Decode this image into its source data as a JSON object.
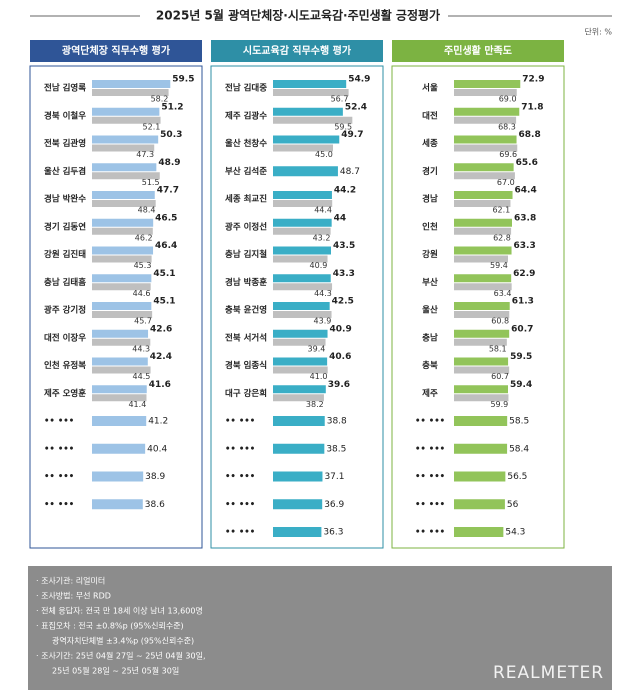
{
  "title": "2025년 5월 광역단체장·시도교육감·주민생활 긍정평가",
  "unit": "단위: %",
  "chart_data": [
    {
      "type": "bar",
      "title": "광역단체장 직무수행 평가",
      "header_color": "#2f5597",
      "categories": [
        "전남 김영록",
        "경북 이철우",
        "전북 김관영",
        "울산 김두겸",
        "경남 박완수",
        "경기 김동연",
        "강원 김진태",
        "충남 김태흠",
        "광주 강기정",
        "대전 이장우",
        "인천 유정복",
        "제주 오영훈",
        "•• •••",
        "•• •••",
        "•• •••",
        "•• •••"
      ],
      "xlim": [
        0,
        76
      ],
      "series": [
        {
          "color": "#9dc3e6",
          "values": [
            59.5,
            51.2,
            50.3,
            48.9,
            47.7,
            46.5,
            46.4,
            45.1,
            45.1,
            42.6,
            42.4,
            41.6,
            41.2,
            40.4,
            38.9,
            38.6
          ]
        },
        {
          "color": "#bfbfbf",
          "values": [
            58.2,
            52.1,
            47.3,
            51.5,
            48.4,
            46.2,
            45.3,
            44.6,
            45.7,
            44.3,
            44.5,
            41.4,
            null,
            null,
            null,
            null
          ]
        }
      ]
    },
    {
      "type": "bar",
      "title": "시도교육감 직무수행 평가",
      "header_color": "#2e8fa6",
      "categories": [
        "전남 김대중",
        "제주 김광수",
        "울산 천창수",
        "부산 김석준",
        "세종 최교진",
        "광주 이정선",
        "충남 김지철",
        "경남 박종훈",
        "충북 윤건영",
        "전북 서거석",
        "경북 임종식",
        "대구 강은희",
        "•• •••",
        "•• •••",
        "•• •••",
        "•• •••",
        "•• •••"
      ],
      "xlim": [
        0,
        75
      ],
      "series": [
        {
          "color": "#3aaec6",
          "values": [
            54.9,
            52.4,
            49.7,
            48.7,
            44.2,
            44.0,
            43.5,
            43.3,
            42.5,
            40.9,
            40.6,
            39.6,
            38.8,
            38.5,
            37.1,
            36.9,
            36.3
          ]
        },
        {
          "color": "#bfbfbf",
          "values": [
            56.7,
            59.5,
            45.0,
            null,
            44.4,
            43.2,
            40.9,
            44.3,
            43.9,
            39.4,
            41.0,
            38.2,
            null,
            null,
            null,
            null,
            null
          ],
          "value_labels": [
            "56.7",
            "59.5",
            "45.0",
            null,
            "44.4",
            "43.2",
            "40.9",
            "44.3",
            "43.9",
            "39.4",
            "41.0",
            "38.2",
            null,
            null,
            null,
            null,
            null
          ]
        }
      ]
    },
    {
      "type": "bar",
      "title": "주민생활 만족도",
      "header_color": "#7cb342",
      "categories": [
        "서울",
        "대전",
        "세종",
        "경기",
        "경남",
        "인천",
        "강원",
        "부산",
        "울산",
        "충남",
        "충북",
        "제주",
        "•• •••",
        "•• •••",
        "•• •••",
        "•• •••",
        "•• •••"
      ],
      "xlim": [
        0,
        110
      ],
      "series": [
        {
          "color": "#92c45a",
          "values": [
            72.9,
            71.8,
            68.8,
            65.6,
            64.4,
            63.8,
            63.3,
            62.9,
            61.3,
            60.7,
            59.5,
            59.4,
            58.5,
            58.4,
            56.5,
            56.0,
            54.3
          ]
        },
        {
          "color": "#bfbfbf",
          "values": [
            69.0,
            68.3,
            69.6,
            67.0,
            62.1,
            62.8,
            59.4,
            63.4,
            60.8,
            58.1,
            60.7,
            59.9,
            null,
            null,
            null,
            null,
            null
          ],
          "value_labels": [
            "69.0",
            "68.3",
            "69.6",
            "67.0",
            "62.1",
            "62.8",
            "59.4",
            "63.4",
            "60.8",
            "58.1",
            "60.7",
            "59.9",
            null,
            null,
            null,
            null,
            null
          ]
        }
      ]
    }
  ],
  "footer": {
    "lines": [
      "· 조사기관: 리얼미터",
      "· 조사방법: 무선 RDD",
      "· 전체 응답자: 전국 만 18세 이상 남녀 13,600명",
      "· 표집오차 : 전국 ±0.8%p (95%신뢰수준)",
      "광역자치단체별 ±3.4%p (95%신뢰수준)",
      "· 조사기간: 25년 04월 27일 ~ 25년 04월 30일,",
      "25년 05월 28일 ~ 25년 05월 30일"
    ]
  },
  "logo": "REALMETER"
}
